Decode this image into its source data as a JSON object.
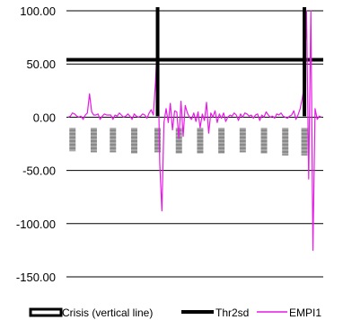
{
  "colors": {
    "grid": "#000000",
    "threshold": "#000000",
    "crisis": "#000000",
    "empi": "#e619e6",
    "period_band": "#a8a8a8"
  },
  "chart_data": {
    "type": "line",
    "title": "",
    "xlabel": "",
    "ylabel": "",
    "ylim": [
      -150,
      100
    ],
    "yticks": [
      100,
      50,
      0,
      -50,
      -100,
      -150
    ],
    "ytick_labels": [
      "100.00",
      "50.00",
      "0.00",
      "-50.00",
      "-100.00",
      "-150.00"
    ],
    "grid": true,
    "legend_position": "bottom",
    "x_count": 120,
    "series": [
      {
        "name": "Crisis (vertical line)",
        "kind": "vertical_lines",
        "x": [
          42,
          111
        ]
      },
      {
        "name": "Thr2sd",
        "kind": "horizontal_line",
        "value": 54
      },
      {
        "name": "EMPI1",
        "kind": "line",
        "values": [
          0,
          1,
          4,
          3,
          1,
          0,
          1,
          -2,
          2,
          4,
          22,
          5,
          2,
          2,
          3,
          -2,
          1,
          3,
          2,
          2,
          2,
          -2,
          2,
          1,
          4,
          2,
          0,
          1,
          3,
          1,
          -2,
          3,
          1,
          0,
          1,
          3,
          2,
          -1,
          4,
          7,
          2,
          33,
          75,
          -43,
          -88,
          -5,
          8,
          -5,
          13,
          -12,
          6,
          5,
          -20,
          15,
          -18,
          11,
          4,
          0,
          -2,
          4,
          -4,
          5,
          -10,
          3,
          -3,
          14,
          -15,
          4,
          0,
          6,
          -5,
          3,
          -1,
          4,
          -4,
          0,
          2,
          1,
          4,
          2,
          -3,
          3,
          0,
          4,
          3,
          1,
          2,
          -1,
          2,
          3,
          -3,
          2,
          0,
          5,
          2,
          0,
          1,
          -1,
          3,
          2,
          4,
          1,
          0,
          -1,
          1,
          2,
          6,
          -2,
          2,
          8,
          18,
          30,
          100,
          -58,
          100,
          -125,
          8,
          -2,
          1,
          0
        ]
      },
      {
        "name": "",
        "kind": "period_bands",
        "bands": [
          {
            "x": 2,
            "y": [
              -10,
              -32
            ]
          },
          {
            "x": 12,
            "y": [
              -10,
              -33
            ]
          },
          {
            "x": 21,
            "y": [
              -10,
              -33
            ]
          },
          {
            "x": 31,
            "y": [
              -10,
              -34
            ]
          },
          {
            "x": 42,
            "y": [
              -10,
              -33
            ]
          },
          {
            "x": 52,
            "y": [
              -10,
              -34
            ]
          },
          {
            "x": 62,
            "y": [
              -10,
              -34
            ]
          },
          {
            "x": 72,
            "y": [
              -10,
              -34
            ]
          },
          {
            "x": 82,
            "y": [
              -10,
              -33
            ]
          },
          {
            "x": 92,
            "y": [
              -10,
              -34
            ]
          },
          {
            "x": 102,
            "y": [
              -10,
              -36
            ]
          },
          {
            "x": 111,
            "y": [
              -10,
              -36
            ]
          }
        ]
      }
    ],
    "legend": [
      {
        "label": "Crisis (vertical line)",
        "style": "box"
      },
      {
        "label": "Thr2sd",
        "style": "thick-line"
      },
      {
        "label": "EMPI1",
        "style": "thin-line"
      }
    ]
  }
}
